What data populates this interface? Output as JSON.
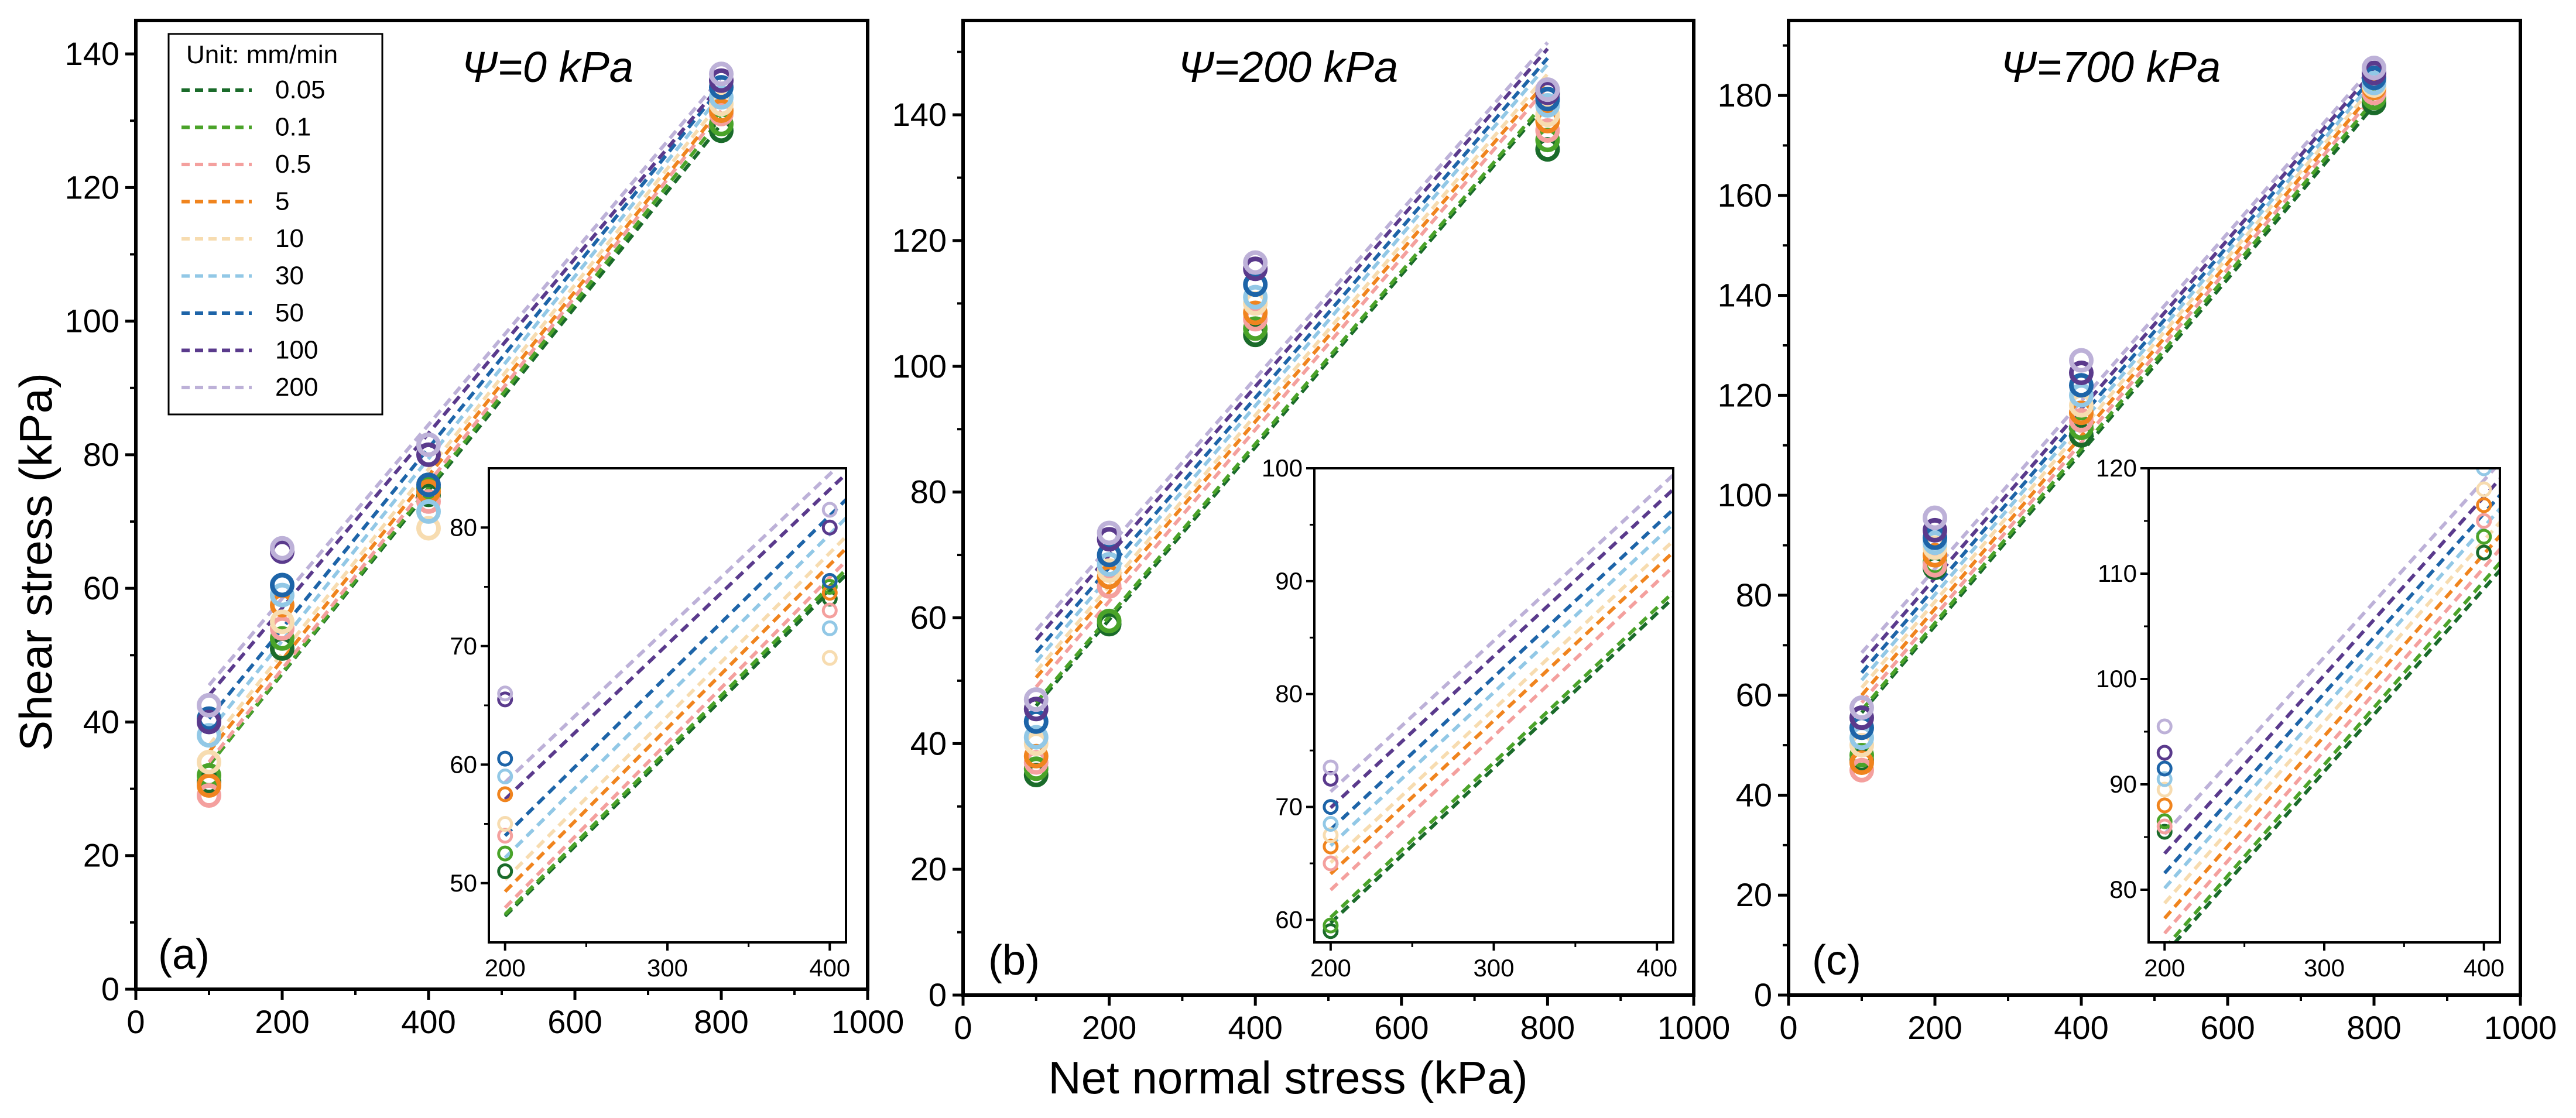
{
  "figure": {
    "xlabel": "Net normal stress (kPa)",
    "ylabel": "Shear stress (kPa)",
    "legend_title": "Unit: mm/min",
    "legend": [
      {
        "label": "0.05",
        "color": "#1a6b2a"
      },
      {
        "label": "0.1",
        "color": "#4aa329"
      },
      {
        "label": "0.5",
        "color": "#f4a09e"
      },
      {
        "label": "5",
        "color": "#f0841e"
      },
      {
        "label": "10",
        "color": "#f7dcb0"
      },
      {
        "label": "30",
        "color": "#92c8e6"
      },
      {
        "label": "50",
        "color": "#1d64a8"
      },
      {
        "label": "100",
        "color": "#5a3a8c"
      },
      {
        "label": "200",
        "color": "#bdb1d8"
      }
    ]
  },
  "chart_data": [
    {
      "type": "scatter",
      "letter": "(a)",
      "title": "Ψ=0 kPa",
      "xlabel": "Net normal stress (kPa)",
      "ylabel": "Shear stress (kPa)",
      "xlim": [
        0,
        1000
      ],
      "ylim": [
        0,
        145
      ],
      "xticks": [
        "0",
        "200",
        "400",
        "600",
        "800",
        "1000"
      ],
      "yticks": [
        "0",
        "20",
        "40",
        "60",
        "80",
        "100",
        "120",
        "140"
      ],
      "x": [
        100,
        200,
        400,
        800
      ],
      "series": [
        {
          "name": "0.05",
          "color": "#1a6b2a",
          "values": [
            31.0,
            51.0,
            74.0,
            128.5
          ],
          "fit": [
            [
              100,
              33.5
            ],
            [
              800,
              129.5
            ]
          ]
        },
        {
          "name": "0.1",
          "color": "#4aa329",
          "values": [
            32.0,
            52.5,
            75.0,
            129.5
          ],
          "fit": [
            [
              100,
              33.5
            ],
            [
              800,
              130.5
            ]
          ]
        },
        {
          "name": "0.5",
          "color": "#f4a09e",
          "values": [
            29.0,
            54.0,
            73.0,
            131.0
          ],
          "fit": [
            [
              100,
              34.0
            ],
            [
              800,
              131.5
            ]
          ]
        },
        {
          "name": "5",
          "color": "#f0841e",
          "values": [
            30.5,
            57.5,
            74.5,
            131.5
          ],
          "fit": [
            [
              100,
              35.5
            ],
            [
              800,
              132.0
            ]
          ]
        },
        {
          "name": "10",
          "color": "#f7dcb0",
          "values": [
            34.0,
            55.0,
            69.0,
            132.5
          ],
          "fit": [
            [
              100,
              36.5
            ],
            [
              800,
              133.0
            ]
          ]
        },
        {
          "name": "30",
          "color": "#92c8e6",
          "values": [
            38.0,
            59.0,
            71.5,
            133.5
          ],
          "fit": [
            [
              100,
              38.5
            ],
            [
              800,
              134.0
            ]
          ]
        },
        {
          "name": "50",
          "color": "#1d64a8",
          "values": [
            40.5,
            60.5,
            75.5,
            135.0
          ],
          "fit": [
            [
              100,
              40.5
            ],
            [
              800,
              135.0
            ]
          ]
        },
        {
          "name": "100",
          "color": "#5a3a8c",
          "values": [
            40.0,
            65.5,
            80.0,
            136.0
          ],
          "fit": [
            [
              100,
              44.0
            ],
            [
              800,
              135.5
            ]
          ]
        },
        {
          "name": "200",
          "color": "#bdb1d8",
          "values": [
            42.5,
            66.0,
            81.5,
            137.0
          ],
          "fit": [
            [
              100,
              45.5
            ],
            [
              800,
              136.5
            ]
          ]
        }
      ],
      "inset": {
        "xlim": [
          190,
          410
        ],
        "ylim": [
          45,
          85
        ],
        "xticks": [
          "200",
          "300",
          "400"
        ],
        "yticks": [
          "50",
          "60",
          "70",
          "80"
        ]
      }
    },
    {
      "type": "scatter",
      "letter": "(b)",
      "title": "Ψ=200 kPa",
      "xlabel": "Net normal stress (kPa)",
      "ylabel": "Shear stress (kPa)",
      "xlim": [
        0,
        1000
      ],
      "ylim": [
        0,
        155
      ],
      "xticks": [
        "0",
        "200",
        "400",
        "600",
        "800",
        "1000"
      ],
      "yticks": [
        "0",
        "20",
        "40",
        "60",
        "80",
        "100",
        "120",
        "140"
      ],
      "x": [
        100,
        200,
        400,
        800
      ],
      "series": [
        {
          "name": "0.05",
          "color": "#1a6b2a",
          "values": [
            35.0,
            59.0,
            105.0,
            134.5
          ],
          "fit": [
            [
              100,
              46.0
            ],
            [
              800,
              142.0
            ]
          ]
        },
        {
          "name": "0.1",
          "color": "#4aa329",
          "values": [
            36.0,
            59.5,
            106.0,
            136.0
          ],
          "fit": [
            [
              100,
              46.5
            ],
            [
              800,
              142.5
            ]
          ]
        },
        {
          "name": "0.5",
          "color": "#f4a09e",
          "values": [
            37.0,
            65.0,
            107.5,
            137.5
          ],
          "fit": [
            [
              100,
              49.0
            ],
            [
              800,
              144.5
            ]
          ]
        },
        {
          "name": "5",
          "color": "#f0841e",
          "values": [
            38.0,
            66.5,
            108.5,
            139.0
          ],
          "fit": [
            [
              100,
              50.5
            ],
            [
              800,
              145.5
            ]
          ]
        },
        {
          "name": "10",
          "color": "#f7dcb0",
          "values": [
            40.0,
            67.5,
            110.0,
            140.0
          ],
          "fit": [
            [
              100,
              51.5
            ],
            [
              800,
              146.5
            ]
          ]
        },
        {
          "name": "30",
          "color": "#92c8e6",
          "values": [
            41.0,
            68.5,
            111.0,
            141.5
          ],
          "fit": [
            [
              100,
              53.0
            ],
            [
              800,
              148.0
            ]
          ]
        },
        {
          "name": "50",
          "color": "#1d64a8",
          "values": [
            43.5,
            70.0,
            113.0,
            142.5
          ],
          "fit": [
            [
              100,
              54.5
            ],
            [
              800,
              149.0
            ]
          ]
        },
        {
          "name": "100",
          "color": "#5a3a8c",
          "values": [
            45.5,
            72.5,
            115.5,
            143.5
          ],
          "fit": [
            [
              100,
              56.5
            ],
            [
              800,
              150.5
            ]
          ]
        },
        {
          "name": "200",
          "color": "#bdb1d8",
          "values": [
            47.0,
            73.5,
            116.5,
            144.0
          ],
          "fit": [
            [
              100,
              58.0
            ],
            [
              800,
              151.5
            ]
          ]
        }
      ],
      "inset": {
        "xlim": [
          190,
          410
        ],
        "ylim": [
          58,
          100
        ],
        "xticks": [
          "200",
          "300",
          "400"
        ],
        "yticks": [
          "60",
          "70",
          "80",
          "90",
          "100"
        ]
      }
    },
    {
      "type": "scatter",
      "letter": "(c)",
      "title": "Ψ=700 kPa",
      "xlabel": "Net normal stress (kPa)",
      "ylabel": "Shear stress (kPa)",
      "xlim": [
        0,
        1000
      ],
      "ylim": [
        0,
        195
      ],
      "xticks": [
        "0",
        "200",
        "400",
        "600",
        "800",
        "1000"
      ],
      "yticks": [
        "0",
        "20",
        "40",
        "60",
        "80",
        "100",
        "120",
        "140",
        "160",
        "180"
      ],
      "x": [
        100,
        200,
        400,
        800
      ],
      "series": [
        {
          "name": "0.05",
          "color": "#1a6b2a",
          "values": [
            47.0,
            85.5,
            112.0,
            178.5
          ],
          "fit": [
            [
              100,
              56.5
            ],
            [
              800,
              178.0
            ]
          ]
        },
        {
          "name": "0.1",
          "color": "#4aa329",
          "values": [
            48.0,
            86.5,
            113.5,
            179.5
          ],
          "fit": [
            [
              100,
              57.0
            ],
            [
              800,
              179.0
            ]
          ]
        },
        {
          "name": "0.5",
          "color": "#f4a09e",
          "values": [
            45.0,
            86.0,
            115.0,
            180.5
          ],
          "fit": [
            [
              100,
              58.5
            ],
            [
              800,
              180.0
            ]
          ]
        },
        {
          "name": "5",
          "color": "#f0841e",
          "values": [
            46.5,
            88.0,
            116.5,
            181.5
          ],
          "fit": [
            [
              100,
              60.0
            ],
            [
              800,
              181.0
            ]
          ]
        },
        {
          "name": "10",
          "color": "#f7dcb0",
          "values": [
            50.0,
            89.5,
            118.0,
            182.0
          ],
          "fit": [
            [
              100,
              61.5
            ],
            [
              800,
              182.0
            ]
          ]
        },
        {
          "name": "30",
          "color": "#92c8e6",
          "values": [
            51.5,
            90.5,
            120.0,
            182.5
          ],
          "fit": [
            [
              100,
              63.0
            ],
            [
              800,
              183.0
            ]
          ]
        },
        {
          "name": "50",
          "color": "#1d64a8",
          "values": [
            53.5,
            91.5,
            122.0,
            183.5
          ],
          "fit": [
            [
              100,
              64.5
            ],
            [
              800,
              184.0
            ]
          ]
        },
        {
          "name": "100",
          "color": "#5a3a8c",
          "values": [
            55.5,
            93.0,
            124.5,
            184.5
          ],
          "fit": [
            [
              100,
              66.5
            ],
            [
              800,
              185.0
            ]
          ]
        },
        {
          "name": "200",
          "color": "#bdb1d8",
          "values": [
            57.5,
            95.5,
            127.0,
            185.5
          ],
          "fit": [
            [
              100,
              68.5
            ],
            [
              800,
              186.0
            ]
          ]
        }
      ],
      "inset": {
        "xlim": [
          190,
          410
        ],
        "ylim": [
          75,
          120
        ],
        "xticks": [
          "200",
          "300",
          "400"
        ],
        "yticks": [
          "80",
          "90",
          "100",
          "110",
          "120"
        ]
      }
    }
  ]
}
